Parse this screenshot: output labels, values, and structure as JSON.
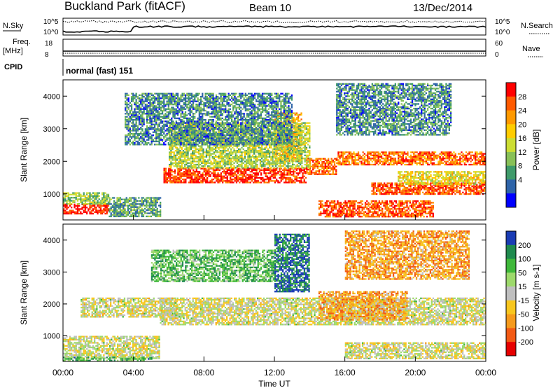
{
  "header": {
    "station": "Buckland Park (fitACF)",
    "beam": "Beam 10",
    "date": "13/Dec/2014"
  },
  "top_panels": {
    "nsky_label": "N.Sky",
    "nsky_ticks": [
      "10^5",
      "10^0"
    ],
    "nsearch_label": "N.Search",
    "nsearch_ticks": [
      "10^5",
      "10^0"
    ],
    "freq_label": "Freq.",
    "freq_unit": "[MHz]",
    "freq_ticks": [
      "18",
      "8"
    ],
    "nave_label": "Nave",
    "nave_ticks": [
      "60",
      "0"
    ],
    "cpid_label": "CPID",
    "cpid_value": "normal (fast) 151"
  },
  "chart_data": [
    {
      "type": "heatmap",
      "panel": "power",
      "ylabel": "Slant Range [km]",
      "yticks": [
        "1000",
        "2000",
        "3000",
        "4000"
      ],
      "ylim": [
        200,
        4500
      ],
      "xlim": [
        "00:00",
        "24:00"
      ],
      "colorbar_label": "Power [dB]",
      "colorbar_ticks": [
        "28",
        "24",
        "20",
        "16",
        "12",
        "8",
        "4"
      ],
      "colorbar_colors": [
        "#ff0000",
        "#ff5a00",
        "#ff9900",
        "#ffcc00",
        "#ccdd33",
        "#88c057",
        "#3f9a6a",
        "#2e64a8",
        "#0000ff"
      ],
      "bands": [
        {
          "t0": 0.0,
          "t1": 2.6,
          "r0": 400,
          "r1": 700,
          "level": 0.95
        },
        {
          "t0": 0.0,
          "t1": 2.6,
          "r0": 700,
          "r1": 1050,
          "level": 0.4
        },
        {
          "t0": 2.6,
          "t1": 5.5,
          "r0": 300,
          "r1": 900,
          "level": 0.3
        },
        {
          "t0": 5.7,
          "t1": 13.8,
          "r0": 1350,
          "r1": 1800,
          "level": 0.9
        },
        {
          "t0": 13.8,
          "t1": 15.5,
          "r0": 1600,
          "r1": 2100,
          "level": 0.8
        },
        {
          "t0": 15.5,
          "t1": 24.0,
          "r0": 1900,
          "r1": 2300,
          "level": 0.8
        },
        {
          "t0": 17.5,
          "t1": 24.0,
          "r0": 1000,
          "r1": 1350,
          "level": 0.85
        },
        {
          "t0": 12.0,
          "t1": 13.5,
          "r0": 2000,
          "r1": 3500,
          "level": 0.7
        },
        {
          "t0": 14.5,
          "t1": 21.0,
          "r0": 300,
          "r1": 800,
          "level": 0.85
        },
        {
          "t0": 6.0,
          "t1": 14.0,
          "r0": 1800,
          "r1": 3200,
          "level": 0.45
        },
        {
          "t0": 3.5,
          "t1": 13.0,
          "r0": 2500,
          "r1": 4100,
          "level": 0.25
        },
        {
          "t0": 15.5,
          "t1": 22.0,
          "r0": 2800,
          "r1": 4400,
          "level": 0.25
        },
        {
          "t0": 19.0,
          "t1": 24.0,
          "r0": 1300,
          "r1": 1700,
          "level": 0.55
        }
      ]
    },
    {
      "type": "heatmap",
      "panel": "velocity",
      "ylabel": "Slant Range [km]",
      "yticks": [
        "1000",
        "2000",
        "3000",
        "4000"
      ],
      "ylim": [
        200,
        4500
      ],
      "xlim": [
        "00:00",
        "24:00"
      ],
      "xticks": [
        "00:00",
        "04:00",
        "08:00",
        "12:00",
        "16:00",
        "20:00",
        "00:00"
      ],
      "xlabel": "Time UT",
      "colorbar_label": "Velocity [m s-1]",
      "colorbar_ticks": [
        "200",
        "100",
        "50",
        "15",
        "-15",
        "-50",
        "-100",
        "-200"
      ],
      "colorbar_colors": [
        "#1a3cb4",
        "#1f8a4e",
        "#3fb83a",
        "#9dd96b",
        "#bfbfbf",
        "#f7c61e",
        "#f59a1c",
        "#f35a14",
        "#e60000"
      ],
      "bands": [
        {
          "t0": 0.0,
          "t1": 5.5,
          "r0": 300,
          "r1": 1000,
          "level": 0.5
        },
        {
          "t0": 0.0,
          "t1": 5.0,
          "r0": 200,
          "r1": 350,
          "level": 0.72
        },
        {
          "t0": 5.5,
          "t1": 24.0,
          "r0": 1350,
          "r1": 2200,
          "level": 0.5
        },
        {
          "t0": 16.0,
          "t1": 24.0,
          "r0": 300,
          "r1": 800,
          "level": 0.5
        },
        {
          "t0": 5.0,
          "t1": 12.0,
          "r0": 2700,
          "r1": 3700,
          "level": 0.7
        },
        {
          "t0": 12.0,
          "t1": 14.0,
          "r0": 2400,
          "r1": 4200,
          "level": 0.88
        },
        {
          "t0": 16.0,
          "t1": 23.0,
          "r0": 2800,
          "r1": 4300,
          "level": 0.3
        },
        {
          "t0": 14.5,
          "t1": 19.5,
          "r0": 1500,
          "r1": 2400,
          "level": 0.32
        },
        {
          "t0": 1.0,
          "t1": 6.5,
          "r0": 1600,
          "r1": 2200,
          "level": 0.5
        }
      ]
    }
  ]
}
